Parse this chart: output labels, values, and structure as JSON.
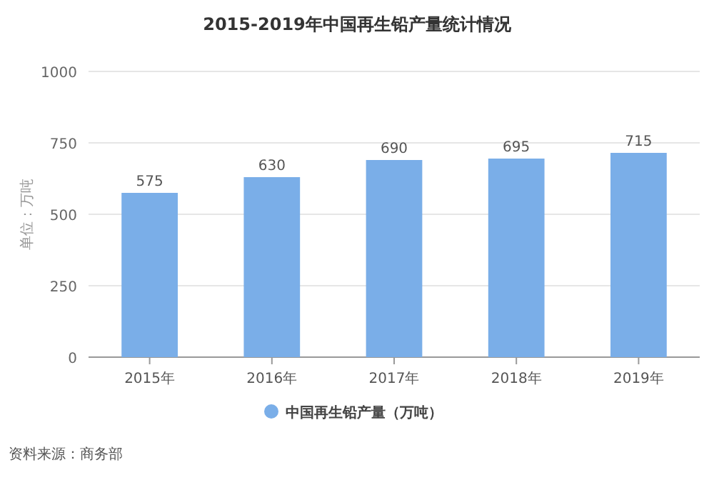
{
  "chart_data": {
    "type": "bar",
    "title": "2015-2019年中国再生铅产量统计情况",
    "ylabel": "单位：万吨",
    "categories": [
      "2015年",
      "2016年",
      "2017年",
      "2018年",
      "2019年"
    ],
    "series": [
      {
        "name": "中国再生铅产量（万吨）",
        "color": "#7aaee8",
        "values": [
          575,
          630,
          690,
          695,
          715
        ]
      }
    ],
    "ylim": [
      0,
      1000
    ],
    "yticks": [
      0,
      250,
      500,
      750,
      1000
    ],
    "grid": "y",
    "legend": "bottom",
    "data_labels": true,
    "annotations": [
      "资料来源：商务部"
    ]
  }
}
